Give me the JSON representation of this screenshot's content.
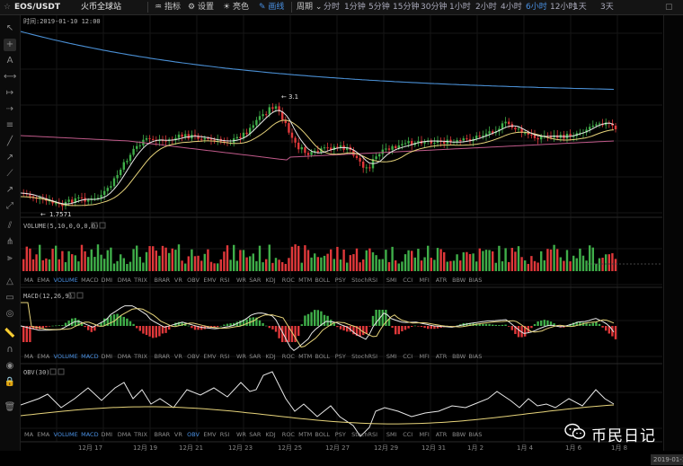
{
  "topbar": {
    "pair": "EOS/USDT",
    "exchange": "火币全球站",
    "btn_indicator": "指标",
    "btn_settings": "设置",
    "btn_theme": "亮色",
    "btn_draw": "画线",
    "period_label": "周期",
    "intervals": [
      "分时",
      "1分钟",
      "5分钟",
      "15分钟",
      "30分钟",
      "1小时",
      "2小时",
      "4小时",
      "6小时",
      "12小时",
      "1天",
      "3天"
    ],
    "active_interval": "4小时"
  },
  "chart": {
    "time_readout": "时间:2019-01-10 12:00",
    "high_label": "3.1",
    "low_label": "1.7571",
    "volume_title": "VOLUME(5,10,0,0,0,0)",
    "macd_title": "MACD(12,26,9)",
    "obv_title": "OBV(30)",
    "indicator_tabs": [
      "MA",
      "EMA",
      "VOLUME",
      "MACD",
      "DMI",
      "DMA",
      "TRIX",
      "BRAR",
      "VR",
      "OBV",
      "EMV",
      "RSI",
      "WR",
      "SAR",
      "KDJ",
      "ROC",
      "MTM",
      "BOLL",
      "PSY",
      "StochRSI",
      "SMI",
      "CCI",
      "MFI",
      "ATR",
      "BBW",
      "BIAS"
    ],
    "active_tabs_row1": [
      "VOLUME"
    ],
    "active_tabs_row2": [
      "VOLUME",
      "MACD"
    ],
    "active_tabs_row3": [
      "VOLUME",
      "MACD",
      "OBV"
    ],
    "date_labels": [
      "12月 17",
      "12月 19",
      "12月 21",
      "12月 23",
      "12月 25",
      "12月 27",
      "12月 29",
      "12月 31",
      "1月 2",
      "1月 4",
      "1月 6",
      "1月 8"
    ],
    "axis_date_partial": "2019-01-1",
    "colors": {
      "up": "#3fae49",
      "down": "#e0383a",
      "ma_blue": "#4a8fd4",
      "ma_white": "#e8e8e8",
      "ma_yellow": "#e6d37a",
      "ma_pink": "#c05a8a"
    }
  },
  "watermark": {
    "text": "币民日记",
    "icon": "wechat-icon"
  }
}
